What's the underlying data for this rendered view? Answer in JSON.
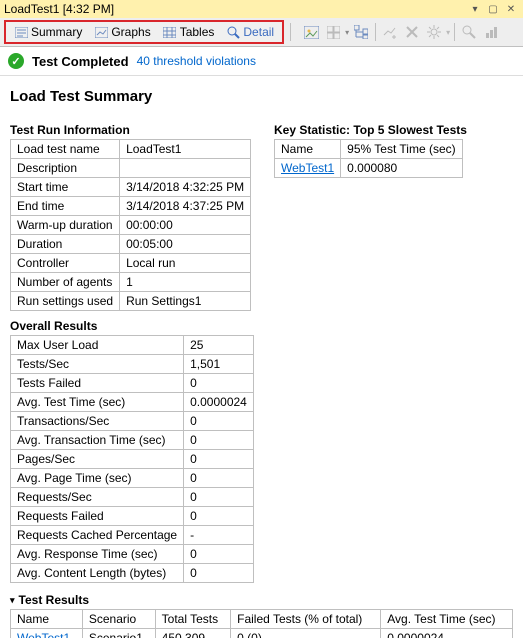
{
  "window": {
    "title": "LoadTest1 [4:32 PM]"
  },
  "tabs": {
    "summary": "Summary",
    "graphs": "Graphs",
    "tables": "Tables",
    "detail": "Detail"
  },
  "status": {
    "text": "Test Completed",
    "violations_link": "40 threshold violations"
  },
  "colors": {
    "accent_red": "#d9262c",
    "link_blue": "#0066cc",
    "titlebar_bg": "#fff1ad",
    "status_green": "#2aa82a",
    "border_gray": "#bfbfbf"
  },
  "summary": {
    "title": "Load Test Summary",
    "test_run_info": {
      "title": "Test Run Information",
      "rows": [
        {
          "label": "Load test name",
          "value": "LoadTest1"
        },
        {
          "label": "Description",
          "value": ""
        },
        {
          "label": "Start time",
          "value": "3/14/2018 4:32:25 PM"
        },
        {
          "label": "End time",
          "value": "3/14/2018 4:37:25 PM"
        },
        {
          "label": "Warm-up duration",
          "value": "00:00:00"
        },
        {
          "label": "Duration",
          "value": "00:05:00"
        },
        {
          "label": "Controller",
          "value": "Local run"
        },
        {
          "label": "Number of agents",
          "value": "1"
        },
        {
          "label": "Run settings used",
          "value": "Run Settings1"
        }
      ]
    },
    "key_statistic": {
      "title": "Key Statistic: Top 5 Slowest Tests",
      "columns": [
        "Name",
        "95% Test Time (sec)"
      ],
      "rows": [
        {
          "name": "WebTest1",
          "time": "0.000080"
        }
      ]
    },
    "overall_results": {
      "title": "Overall Results",
      "rows": [
        {
          "label": "Max User Load",
          "value": "25"
        },
        {
          "label": "Tests/Sec",
          "value": "1,501"
        },
        {
          "label": "Tests Failed",
          "value": "0"
        },
        {
          "label": "Avg. Test Time (sec)",
          "value": "0.0000024"
        },
        {
          "label": "Transactions/Sec",
          "value": "0"
        },
        {
          "label": "Avg. Transaction Time (sec)",
          "value": "0"
        },
        {
          "label": "Pages/Sec",
          "value": "0"
        },
        {
          "label": "Avg. Page Time (sec)",
          "value": "0"
        },
        {
          "label": "Requests/Sec",
          "value": "0"
        },
        {
          "label": "Requests Failed",
          "value": "0"
        },
        {
          "label": "Requests Cached Percentage",
          "value": "-"
        },
        {
          "label": "Avg. Response Time (sec)",
          "value": "0"
        },
        {
          "label": "Avg. Content Length (bytes)",
          "value": "0"
        }
      ]
    },
    "test_results": {
      "title": "Test Results",
      "columns": [
        "Name",
        "Scenario",
        "Total Tests",
        "Failed Tests (% of total)",
        "Avg. Test Time (sec)"
      ],
      "rows": [
        {
          "name": "WebTest1",
          "scenario": "Scenario1",
          "total": "450,309",
          "failed": "0 (0)",
          "avg": "0.0000024"
        }
      ]
    }
  }
}
